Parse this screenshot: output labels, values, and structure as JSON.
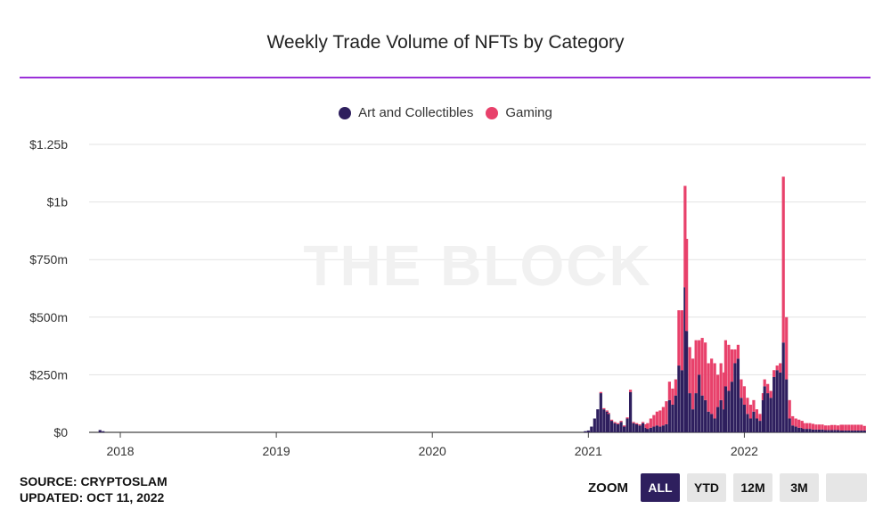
{
  "title": "Weekly Trade Volume of NFTs by Category",
  "watermark": "THE BLOCK",
  "legend": [
    {
      "label": "Art and Collectibles",
      "color": "#2e1f5e"
    },
    {
      "label": "Gaming",
      "color": "#e8416b"
    }
  ],
  "footer": {
    "source": "SOURCE: CRYPTOSLAM",
    "updated": "UPDATED: OCT 11, 2022"
  },
  "zoom": {
    "label": "ZOOM",
    "buttons": [
      "ALL",
      "YTD",
      "12M",
      "3M",
      ""
    ],
    "active": "ALL"
  },
  "chart_data": {
    "type": "bar",
    "stacked": true,
    "title": "Weekly Trade Volume of NFTs by Category",
    "xlabel": "",
    "ylabel": "",
    "y_ticks": [
      "$0",
      "$250m",
      "$500m",
      "$750m",
      "$1b",
      "$1.25b"
    ],
    "y_tick_values": [
      0,
      250,
      500,
      750,
      1000,
      1250
    ],
    "ylim": [
      0,
      1250
    ],
    "y_unit": "millions USD",
    "x_ticks": [
      "2018",
      "2019",
      "2020",
      "2021",
      "2022"
    ],
    "x_tick_years": [
      2018,
      2019,
      2020,
      2021,
      2022
    ],
    "xlim_years": [
      2017.8,
      2022.78
    ],
    "grid": true,
    "legend_position": "top-center",
    "series": [
      {
        "name": "Art and Collectibles",
        "color": "#2e1f5e",
        "x": [
          2017.87,
          2017.89,
          2020.98,
          2021.0,
          2021.02,
          2021.04,
          2021.06,
          2021.08,
          2021.1,
          2021.12,
          2021.13,
          2021.15,
          2021.17,
          2021.19,
          2021.21,
          2021.23,
          2021.25,
          2021.27,
          2021.29,
          2021.31,
          2021.33,
          2021.35,
          2021.37,
          2021.38,
          2021.4,
          2021.42,
          2021.44,
          2021.46,
          2021.48,
          2021.5,
          2021.52,
          2021.54,
          2021.56,
          2021.58,
          2021.6,
          2021.62,
          2021.63,
          2021.65,
          2021.67,
          2021.69,
          2021.71,
          2021.73,
          2021.75,
          2021.77,
          2021.79,
          2021.81,
          2021.83,
          2021.85,
          2021.87,
          2021.88,
          2021.9,
          2021.92,
          2021.94,
          2021.96,
          2021.98,
          2022.0,
          2022.02,
          2022.04,
          2022.06,
          2022.08,
          2022.1,
          2022.12,
          2022.13,
          2022.15,
          2022.17,
          2022.19,
          2022.21,
          2022.23,
          2022.25,
          2022.27,
          2022.29,
          2022.31,
          2022.33,
          2022.35,
          2022.37,
          2022.38,
          2022.4,
          2022.42,
          2022.44,
          2022.46,
          2022.48,
          2022.5,
          2022.52,
          2022.54,
          2022.56,
          2022.58,
          2022.6,
          2022.62,
          2022.63,
          2022.65,
          2022.67,
          2022.69,
          2022.71,
          2022.73,
          2022.75,
          2022.77
        ],
        "values": [
          10,
          5,
          5,
          8,
          25,
          60,
          100,
          170,
          100,
          90,
          80,
          50,
          40,
          35,
          45,
          25,
          60,
          175,
          40,
          35,
          30,
          40,
          20,
          15,
          20,
          25,
          30,
          25,
          30,
          35,
          140,
          120,
          160,
          290,
          270,
          630,
          440,
          170,
          100,
          170,
          250,
          160,
          140,
          90,
          80,
          60,
          110,
          140,
          100,
          200,
          180,
          220,
          300,
          320,
          150,
          120,
          80,
          60,
          90,
          60,
          50,
          140,
          200,
          170,
          150,
          240,
          270,
          260,
          390,
          230,
          60,
          30,
          25,
          20,
          20,
          15,
          15,
          15,
          12,
          12,
          12,
          12,
          10,
          10,
          10,
          10,
          10,
          8,
          8,
          8,
          8,
          8,
          8,
          8,
          8,
          8
        ]
      },
      {
        "name": "Gaming",
        "color": "#e8416b",
        "x": [
          2017.87,
          2017.89,
          2020.98,
          2021.0,
          2021.02,
          2021.04,
          2021.06,
          2021.08,
          2021.1,
          2021.12,
          2021.13,
          2021.15,
          2021.17,
          2021.19,
          2021.21,
          2021.23,
          2021.25,
          2021.27,
          2021.29,
          2021.31,
          2021.33,
          2021.35,
          2021.37,
          2021.38,
          2021.4,
          2021.42,
          2021.44,
          2021.46,
          2021.48,
          2021.5,
          2021.52,
          2021.54,
          2021.56,
          2021.58,
          2021.6,
          2021.62,
          2021.63,
          2021.65,
          2021.67,
          2021.69,
          2021.71,
          2021.73,
          2021.75,
          2021.77,
          2021.79,
          2021.81,
          2021.83,
          2021.85,
          2021.87,
          2021.88,
          2021.9,
          2021.92,
          2021.94,
          2021.96,
          2021.98,
          2022.0,
          2022.02,
          2022.04,
          2022.06,
          2022.08,
          2022.1,
          2022.12,
          2022.13,
          2022.15,
          2022.17,
          2022.19,
          2022.21,
          2022.23,
          2022.25,
          2022.27,
          2022.29,
          2022.31,
          2022.33,
          2022.35,
          2022.37,
          2022.38,
          2022.4,
          2022.42,
          2022.44,
          2022.46,
          2022.48,
          2022.5,
          2022.52,
          2022.54,
          2022.56,
          2022.58,
          2022.6,
          2022.62,
          2022.63,
          2022.65,
          2022.67,
          2022.69,
          2022.71,
          2022.73,
          2022.75,
          2022.77
        ],
        "values": [
          0,
          0,
          0,
          0,
          0,
          0,
          0,
          5,
          5,
          5,
          5,
          5,
          5,
          5,
          5,
          5,
          5,
          10,
          5,
          5,
          5,
          5,
          15,
          25,
          40,
          50,
          60,
          70,
          80,
          100,
          80,
          70,
          70,
          240,
          260,
          440,
          400,
          200,
          220,
          230,
          150,
          250,
          250,
          210,
          240,
          240,
          140,
          160,
          160,
          200,
          200,
          140,
          60,
          60,
          80,
          80,
          70,
          60,
          50,
          40,
          30,
          30,
          30,
          40,
          30,
          30,
          20,
          40,
          720,
          270,
          80,
          40,
          35,
          35,
          30,
          25,
          25,
          25,
          25,
          22,
          22,
          22,
          20,
          20,
          22,
          22,
          20,
          25,
          25,
          25,
          25,
          25,
          25,
          25,
          25,
          20
        ]
      }
    ]
  }
}
